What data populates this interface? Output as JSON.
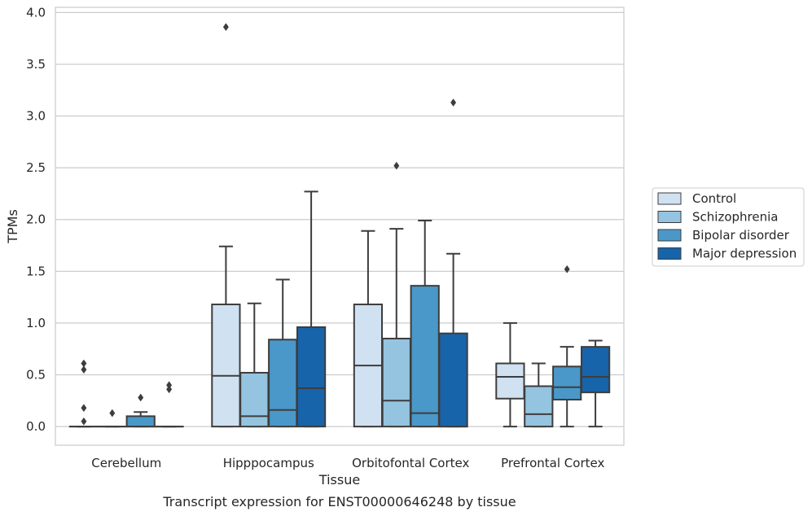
{
  "chart_data": {
    "type": "box",
    "xlabel": "Tissue",
    "ylabel": "TPMs",
    "caption": "Transcript expression for ENST00000646248 by tissue",
    "ylim": [
      -0.18,
      4.05
    ],
    "yticks": [
      "0.0",
      "0.5",
      "1.0",
      "1.5",
      "2.0",
      "2.5",
      "3.0",
      "3.5",
      "4.0"
    ],
    "categories": [
      "Cerebellum",
      "Hipppocampus",
      "Orbitofontal Cortex",
      "Prefrontal Cortex"
    ],
    "grid": "horizontal",
    "legend_position": "right",
    "series": [
      {
        "name": "Control",
        "color": "#d0e1f2",
        "boxes": [
          {
            "whislo": 0.0,
            "q1": 0.0,
            "med": 0.0,
            "q3": 0.0,
            "whishi": 0.0,
            "fliers": [
              0.05,
              0.18,
              0.55,
              0.61
            ]
          },
          {
            "whislo": 0.0,
            "q1": 0.0,
            "med": 0.49,
            "q3": 1.18,
            "whishi": 1.74,
            "fliers": [
              3.86
            ]
          },
          {
            "whislo": 0.0,
            "q1": 0.0,
            "med": 0.59,
            "q3": 1.18,
            "whishi": 1.89,
            "fliers": []
          },
          {
            "whislo": 0.0,
            "q1": 0.27,
            "med": 0.48,
            "q3": 0.61,
            "whishi": 1.0,
            "fliers": []
          }
        ]
      },
      {
        "name": "Schizophrenia",
        "color": "#94c4df",
        "boxes": [
          {
            "whislo": 0.0,
            "q1": 0.0,
            "med": 0.0,
            "q3": 0.0,
            "whishi": 0.0,
            "fliers": [
              0.13
            ]
          },
          {
            "whislo": 0.0,
            "q1": 0.0,
            "med": 0.1,
            "q3": 0.52,
            "whishi": 1.19,
            "fliers": []
          },
          {
            "whislo": 0.0,
            "q1": 0.0,
            "med": 0.25,
            "q3": 0.85,
            "whishi": 1.91,
            "fliers": [
              2.52
            ]
          },
          {
            "whislo": 0.0,
            "q1": 0.0,
            "med": 0.12,
            "q3": 0.39,
            "whishi": 0.61,
            "fliers": []
          }
        ]
      },
      {
        "name": "Bipolar disorder",
        "color": "#4a98c9",
        "boxes": [
          {
            "whislo": 0.0,
            "q1": 0.0,
            "med": 0.0,
            "q3": 0.1,
            "whishi": 0.14,
            "fliers": [
              0.28
            ]
          },
          {
            "whislo": 0.0,
            "q1": 0.0,
            "med": 0.16,
            "q3": 0.84,
            "whishi": 1.42,
            "fliers": []
          },
          {
            "whislo": 0.0,
            "q1": 0.0,
            "med": 0.13,
            "q3": 1.36,
            "whishi": 1.99,
            "fliers": []
          },
          {
            "whislo": 0.0,
            "q1": 0.26,
            "med": 0.38,
            "q3": 0.58,
            "whishi": 0.77,
            "fliers": [
              1.52
            ]
          }
        ]
      },
      {
        "name": "Major depression",
        "color": "#1764ab",
        "boxes": [
          {
            "whislo": 0.0,
            "q1": 0.0,
            "med": 0.0,
            "q3": 0.0,
            "whishi": 0.0,
            "fliers": [
              0.36,
              0.4
            ]
          },
          {
            "whislo": 0.0,
            "q1": 0.0,
            "med": 0.37,
            "q3": 0.96,
            "whishi": 2.27,
            "fliers": []
          },
          {
            "whislo": 0.0,
            "q1": 0.0,
            "med": 0.0,
            "q3": 0.9,
            "whishi": 1.67,
            "fliers": [
              3.13
            ]
          },
          {
            "whislo": 0.0,
            "q1": 0.33,
            "med": 0.48,
            "q3": 0.77,
            "whishi": 0.83,
            "fliers": []
          }
        ]
      }
    ]
  }
}
